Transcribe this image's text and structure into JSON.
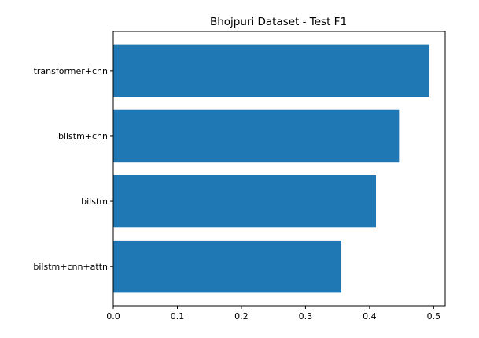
{
  "chart_data": {
    "type": "bar",
    "orientation": "horizontal",
    "title": "Bhojpuri Dataset - Test F1",
    "xlabel": "",
    "ylabel": "",
    "categories": [
      "transformer+cnn",
      "bilstm+cnn",
      "bilstm",
      "bilstm+cnn+attn"
    ],
    "values": [
      0.493,
      0.446,
      0.41,
      0.356
    ],
    "xlim": [
      0,
      0.518
    ],
    "xticks": [
      "0.0",
      "0.1",
      "0.2",
      "0.3",
      "0.4",
      "0.5"
    ],
    "bar_color": "#1f77b4",
    "grid": false,
    "legend": "none"
  }
}
